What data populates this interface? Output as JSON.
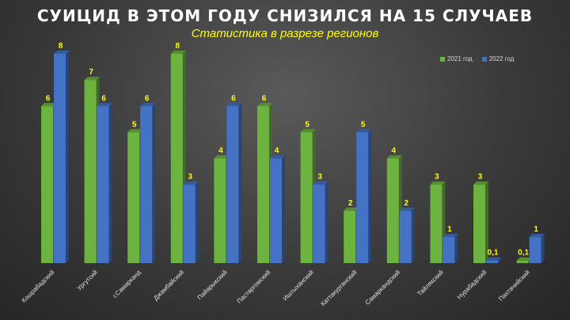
{
  "chart_data": {
    "type": "bar",
    "title": "СУИЦИД В ЭТОМ ГОДУ СНИЗИЛСЯ НА 15 СЛУЧАЕВ",
    "subtitle": "Статистика в разрезе регионов",
    "categories": [
      "Кошрабадский",
      "Ургутсий",
      "г.Самарканд",
      "Джамбайский",
      "Пайарыкский",
      "Пастаргомский",
      "Иштыханский",
      "Каттакурганский",
      "Самаркандский",
      "Тайлякский",
      "Нурабадский",
      "Пахтачийский"
    ],
    "series": [
      {
        "name": "2021 год",
        "values": [
          6,
          7,
          5,
          8,
          4,
          6,
          5,
          2,
          4,
          3,
          3,
          0.1
        ],
        "labels": [
          "6",
          "7",
          "5",
          "8",
          "4",
          "6",
          "5",
          "2",
          "4",
          "3",
          "3",
          "0,1"
        ],
        "color": "#6cb33f"
      },
      {
        "name": "2022 год",
        "values": [
          8,
          6,
          6,
          3,
          6,
          4,
          3,
          5,
          2,
          1,
          0.1,
          1
        ],
        "labels": [
          "8",
          "6",
          "6",
          "3",
          "6",
          "4",
          "3",
          "5",
          "2",
          "1",
          "0,1",
          "1"
        ],
        "color": "#4472c4"
      }
    ],
    "ylim": [
      0,
      8
    ],
    "grid": false,
    "legend": "top-right",
    "label_color": "#ffff00"
  }
}
